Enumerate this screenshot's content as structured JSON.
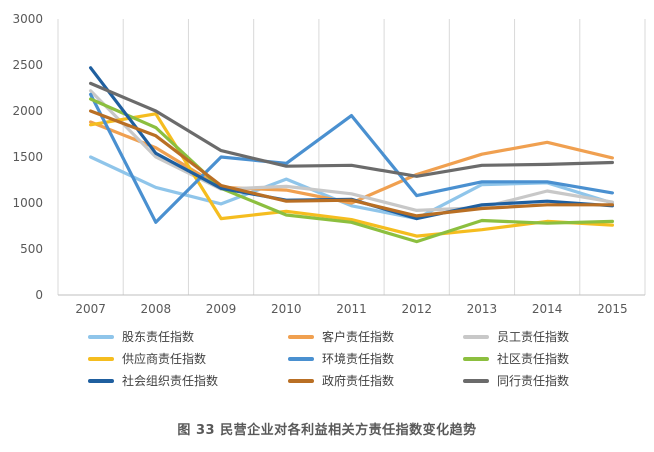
{
  "caption": "图 33  民营企业对各利益相关方责任指数变化趋势",
  "chart_data": {
    "type": "line",
    "title": "",
    "xlabel": "",
    "ylabel": "",
    "x": [
      "2007",
      "2008",
      "2009",
      "2010",
      "2011",
      "2012",
      "2013",
      "2014",
      "2015"
    ],
    "ylim": [
      0,
      3000
    ],
    "yticks": [
      0,
      500,
      1000,
      1500,
      2000,
      2500,
      3000
    ],
    "grid": "vertical gridlines at x categories",
    "legend": "bottom, 3 columns",
    "series": [
      {
        "name": "股东责任指数",
        "color": "#8fc5ea",
        "values": [
          1500,
          1170,
          990,
          1260,
          970,
          830,
          1200,
          1220,
          1000
        ]
      },
      {
        "name": "客户责任指数",
        "color": "#f0a050",
        "values": [
          1880,
          1600,
          1170,
          1140,
          1000,
          1310,
          1530,
          1660,
          1490
        ]
      },
      {
        "name": "员工责任指数",
        "color": "#c8c8c8",
        "values": [
          2220,
          1500,
          1150,
          1180,
          1100,
          920,
          950,
          1130,
          1010
        ]
      },
      {
        "name": "供应商责任指数",
        "color": "#f5bd1f",
        "values": [
          1850,
          1970,
          830,
          910,
          820,
          640,
          710,
          800,
          760
        ]
      },
      {
        "name": "环境责任指数",
        "color": "#4a90d0",
        "values": [
          2180,
          790,
          1500,
          1430,
          1950,
          1080,
          1230,
          1230,
          1110
        ]
      },
      {
        "name": "社区责任指数",
        "color": "#8cbf3f",
        "values": [
          2130,
          1820,
          1160,
          870,
          790,
          580,
          810,
          780,
          800
        ]
      },
      {
        "name": "社会组织责任指数",
        "color": "#1f5f9f",
        "values": [
          2470,
          1540,
          1160,
          1030,
          1040,
          830,
          980,
          1020,
          970
        ]
      },
      {
        "name": "政府责任指数",
        "color": "#b96f24",
        "values": [
          2000,
          1730,
          1190,
          1020,
          1030,
          860,
          940,
          980,
          980
        ]
      },
      {
        "name": "同行责任指数",
        "color": "#6b6b6b",
        "values": [
          2300,
          2000,
          1570,
          1400,
          1410,
          1290,
          1410,
          1420,
          1440
        ]
      }
    ]
  }
}
